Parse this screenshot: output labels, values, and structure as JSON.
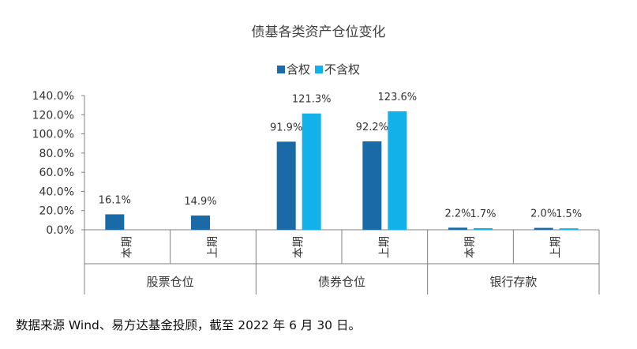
{
  "title": "债基各类资产仓位变化",
  "source_note": "数据来源 Wind、易方达基金投顾，截至 2022 年 6 月 30 日。",
  "colors": {
    "series_1": "#1a6aa8",
    "series_2": "#13b1ea",
    "axis": "#808080",
    "text": "#333333"
  },
  "chart_data": {
    "type": "bar",
    "title": "债基各类资产仓位变化",
    "legend_position": "top-center",
    "grid": false,
    "ylim": [
      0,
      140
    ],
    "y_ticks": [
      "0.0%",
      "20.0%",
      "40.0%",
      "60.0%",
      "80.0%",
      "100.0%",
      "120.0%",
      "140.0%"
    ],
    "groups": [
      {
        "name": "股票仓位",
        "categories": [
          "本期",
          "上期"
        ]
      },
      {
        "name": "债券仓位",
        "categories": [
          "本期",
          "上期"
        ]
      },
      {
        "name": "银行存款",
        "categories": [
          "本期",
          "上期"
        ]
      }
    ],
    "series": [
      {
        "name": "含权",
        "values": [
          16.1,
          14.9,
          91.9,
          92.2,
          2.2,
          2.0
        ],
        "labels": [
          "16.1%",
          "14.9%",
          "91.9%",
          "92.2%",
          "2.2%",
          "2.0%"
        ]
      },
      {
        "name": "不含权",
        "values": [
          null,
          null,
          121.3,
          123.6,
          1.7,
          1.5
        ],
        "labels": [
          "",
          "",
          "121.3%",
          "123.6%",
          "1.7%",
          "1.5%"
        ]
      }
    ]
  }
}
